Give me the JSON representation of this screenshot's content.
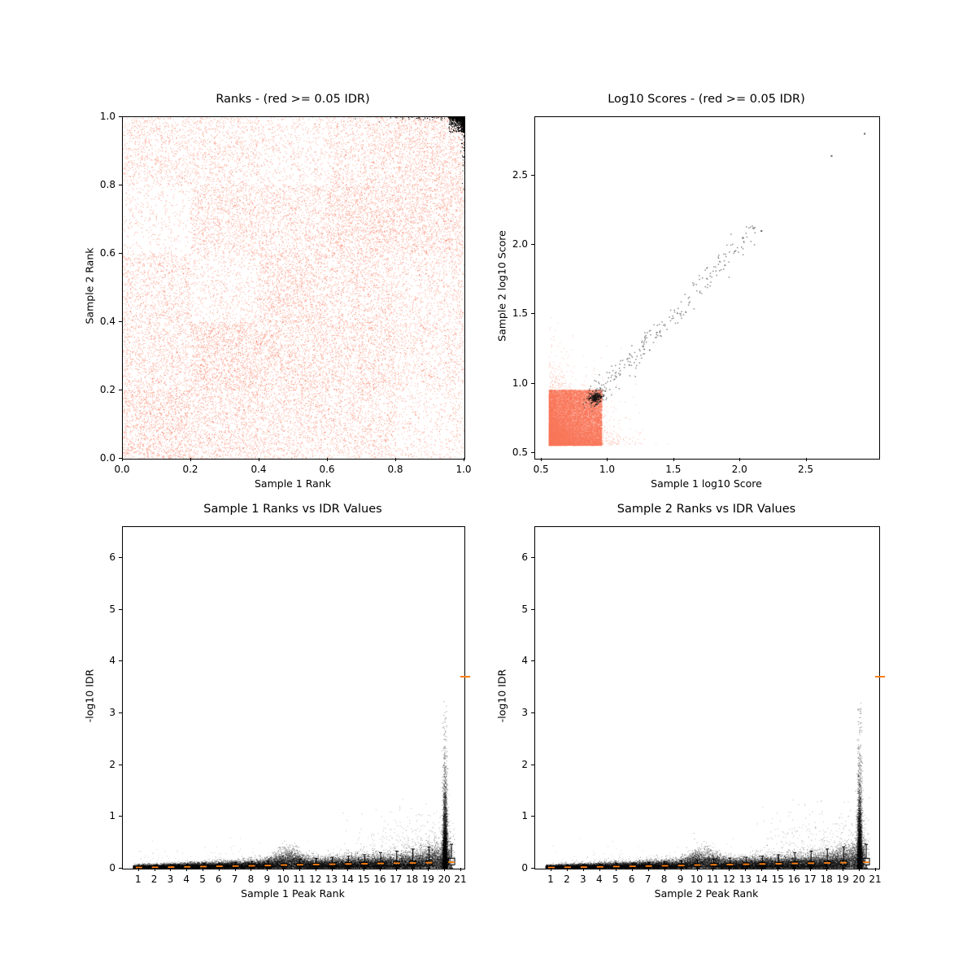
{
  "figure": {
    "background": "#ffffff"
  },
  "colors": {
    "salmon": "#f8765a",
    "black": "#000000",
    "gray": "#555555",
    "orange": "#ff7f0e"
  },
  "chart_data": [
    {
      "type": "scatter",
      "title": "Ranks - (red >= 0.05 IDR)",
      "xlabel": "Sample 1 Rank",
      "ylabel": "Sample 2 Rank",
      "xlim": [
        0,
        1
      ],
      "ylim": [
        0,
        1
      ],
      "xticks": [
        0.0,
        0.2,
        0.4,
        0.6,
        0.8,
        1.0
      ],
      "xtick_labels": [
        "0.0",
        "0.2",
        "0.4",
        "0.6",
        "0.8",
        "1.0"
      ],
      "yticks": [
        0.0,
        0.2,
        0.4,
        0.6,
        0.8,
        1.0
      ],
      "ytick_labels": [
        "0.0",
        "0.2",
        "0.4",
        "0.6",
        "0.8",
        "1.0"
      ],
      "grid_on": false,
      "seed": 11,
      "series": [
        {
          "name": "peaks with IDR >= 0.05",
          "kind": "grid_cloud",
          "color": "#f8765a",
          "alpha": 0.35,
          "size": 1.3,
          "n": 26000,
          "cell": 0.2,
          "grid": [
            [
              1.0,
              0.7,
              0.6,
              0.55,
              0.3
            ],
            [
              0.65,
              1.0,
              0.85,
              0.75,
              0.5
            ],
            [
              0.6,
              0.35,
              0.85,
              0.65,
              0.45
            ],
            [
              0.2,
              0.7,
              0.65,
              0.95,
              0.85
            ],
            [
              0.55,
              0.5,
              0.3,
              0.6,
              0.8
            ]
          ]
        },
        {
          "name": "peaks with IDR < 0.05",
          "kind": "corner_cloud",
          "color": "#000000",
          "alpha": 0.8,
          "size": 1.3,
          "n": 1100,
          "corner": [
            1.0,
            1.0
          ],
          "spread": 0.045,
          "pow": 3.5
        },
        {
          "name": "top-edge significant peaks",
          "kind": "cluster",
          "color": "#000000",
          "alpha": 0.7,
          "size": 1.2,
          "n": 60,
          "cx": 0.9,
          "cy": 0.997,
          "sx": 0.07,
          "sy": 0.003
        },
        {
          "name": "right-edge significant peaks",
          "kind": "cluster",
          "color": "#000000",
          "alpha": 0.7,
          "size": 1.2,
          "n": 50,
          "cx": 0.997,
          "cy": 0.93,
          "sx": 0.003,
          "sy": 0.05
        }
      ]
    },
    {
      "type": "scatter",
      "title": "Log10 Scores - (red >= 0.05 IDR)",
      "xlabel": "Sample 1 log10 Score",
      "ylabel": "Sample 2 log10 Score",
      "xlim": [
        0.45,
        3.05
      ],
      "ylim": [
        0.46,
        2.92
      ],
      "xticks": [
        0.5,
        1.0,
        1.5,
        2.0,
        2.5
      ],
      "xtick_labels": [
        "0.5",
        "1.0",
        "1.5",
        "2.0",
        "2.5"
      ],
      "yticks": [
        0.5,
        1.0,
        1.5,
        2.0,
        2.5
      ],
      "ytick_labels": [
        "0.5",
        "1.0",
        "1.5",
        "2.0",
        "2.5"
      ],
      "grid_on": false,
      "seed": 22,
      "series": [
        {
          "name": "low-score non-reproducible blob",
          "kind": "blob_core",
          "color": "#f8765a",
          "alpha": 0.35,
          "size": 1.3,
          "n": 17000,
          "x0": 0.555,
          "y0": 0.555,
          "span": 0.4,
          "pow": 1.15
        },
        {
          "name": "blob fringe",
          "kind": "blob_fringe",
          "color": "#f8765a",
          "alpha": 0.3,
          "size": 1.2,
          "n": 5200,
          "x0": 0.555,
          "y0": 0.555,
          "scale": 0.115,
          "clip": 0.95
        },
        {
          "name": "reproducible diagonal scores",
          "kind": "diag",
          "color": "#444444",
          "alpha": 0.5,
          "size": 1.6,
          "n": 290,
          "t0": 0.88,
          "span": 1.3,
          "pow": 2.0,
          "sigma": 0.035
        },
        {
          "name": "dense significant cluster",
          "kind": "cluster",
          "color": "#111111",
          "alpha": 0.7,
          "size": 1.5,
          "n": 140,
          "cx": 0.905,
          "cy": 0.9,
          "sx": 0.025,
          "sy": 0.02
        },
        {
          "name": "high-score outliers",
          "kind": "points",
          "color": "#666666",
          "alpha": 0.9,
          "size": 2.2,
          "pts": [
            [
              2.69,
              2.64
            ],
            [
              2.94,
              2.8
            ],
            [
              2.1,
              2.12
            ],
            [
              2.16,
              2.1
            ],
            [
              2.02,
              2.05
            ]
          ]
        }
      ]
    },
    {
      "type": "scatter",
      "title": "Sample 1 Ranks vs IDR Values",
      "xlabel": "Sample 1 Peak Rank",
      "ylabel": "-log10 IDR",
      "xlim": [
        0,
        21.2
      ],
      "ylim": [
        0,
        6.6
      ],
      "xticks": [
        1,
        2,
        3,
        4,
        5,
        6,
        7,
        8,
        9,
        10,
        11,
        12,
        13,
        14,
        15,
        16,
        17,
        18,
        19,
        20,
        21
      ],
      "xtick_labels": [
        "1",
        "2",
        "3",
        "4",
        "5",
        "6",
        "7",
        "8",
        "9",
        "10",
        "11",
        "12",
        "13",
        "14",
        "15",
        "16",
        "17",
        "18",
        "19",
        "20",
        "21"
      ],
      "yticks": [
        0,
        1,
        2,
        3,
        4,
        5,
        6
      ],
      "ytick_labels": [
        "0",
        "1",
        "2",
        "3",
        "4",
        "5",
        "6"
      ],
      "grid_on": false,
      "seed": 33,
      "edge_dash": {
        "y": 3.7,
        "color": "#ff7f0e"
      },
      "series": [
        {
          "name": "idr band",
          "kind": "band",
          "color": "#000000",
          "alpha": 0.25,
          "size": 1.2,
          "n": 26000,
          "x0": 0.65,
          "x1": 20.35,
          "base": 0.022,
          "slope": 0.0055,
          "bump_amp": 0.09,
          "bump_x": 10.3,
          "bump_sig": 0.65,
          "grow_amp": 0.14,
          "grow_x0": 17.0
        },
        {
          "name": "top-rank spike",
          "kind": "spike",
          "color": "#000000",
          "alpha": 0.28,
          "size": 1.2,
          "n": 3800,
          "x": 20.0,
          "xsig": 0.075,
          "yscale": 0.52,
          "clip": 3.25
        },
        {
          "name": "scatter above band high ranks",
          "kind": "sprinkle",
          "color": "#000000",
          "alpha": 0.15,
          "size": 1.3,
          "n": 900,
          "x0": 13.5,
          "x1": 20.6,
          "xpow": 0.55,
          "yscale": 0.3,
          "yoff": 0.05,
          "clip": 1.45
        },
        {
          "name": "scatter above band low ranks",
          "kind": "sprinkle",
          "color": "#000000",
          "alpha": 0.12,
          "size": 1.2,
          "n": 260,
          "x0": 1.0,
          "x1": 14.0,
          "xpow": 1.0,
          "yscale": 0.13,
          "yoff": 0.03,
          "clip": 0.65
        },
        {
          "name": "per-rank boxplots",
          "kind": "boxplot",
          "color": "#000000",
          "median_color": "#ff7f0e",
          "width": 0.4,
          "stats": [
            [
              1,
              0.003,
              0.012,
              0.022,
              0.032,
              0.05
            ],
            [
              2,
              0.003,
              0.014,
              0.026,
              0.04,
              0.07
            ],
            [
              3,
              0.004,
              0.016,
              0.03,
              0.046,
              0.08
            ],
            [
              4,
              0.004,
              0.02,
              0.035,
              0.052,
              0.09
            ],
            [
              5,
              0.005,
              0.022,
              0.04,
              0.057,
              0.1
            ],
            [
              6,
              0.005,
              0.025,
              0.045,
              0.063,
              0.11
            ],
            [
              7,
              0.005,
              0.028,
              0.05,
              0.07,
              0.12
            ],
            [
              8,
              0.006,
              0.031,
              0.055,
              0.077,
              0.135
            ],
            [
              9,
              0.006,
              0.034,
              0.06,
              0.084,
              0.15
            ],
            [
              10,
              0.007,
              0.04,
              0.07,
              0.095,
              0.17
            ],
            [
              11,
              0.007,
              0.042,
              0.075,
              0.1,
              0.185
            ],
            [
              12,
              0.008,
              0.045,
              0.08,
              0.105,
              0.2
            ],
            [
              13,
              0.008,
              0.048,
              0.085,
              0.11,
              0.22
            ],
            [
              14,
              0.009,
              0.05,
              0.09,
              0.115,
              0.24
            ],
            [
              15,
              0.009,
              0.053,
              0.095,
              0.122,
              0.27
            ],
            [
              16,
              0.01,
              0.057,
              0.1,
              0.13,
              0.31
            ],
            [
              17,
              0.01,
              0.06,
              0.105,
              0.137,
              0.34
            ],
            [
              18,
              0.011,
              0.064,
              0.11,
              0.145,
              0.38
            ],
            [
              19,
              0.011,
              0.068,
              0.115,
              0.155,
              0.42
            ],
            [
              20.4,
              0.012,
              0.075,
              0.125,
              0.2,
              0.47
            ]
          ]
        }
      ]
    },
    {
      "type": "scatter",
      "title": "Sample 2 Ranks vs IDR Values",
      "xlabel": "Sample 2 Peak Rank",
      "ylabel": "-log10 IDR",
      "xlim": [
        0,
        21.2
      ],
      "ylim": [
        0,
        6.6
      ],
      "xticks": [
        1,
        2,
        3,
        4,
        5,
        6,
        7,
        8,
        9,
        10,
        11,
        12,
        13,
        14,
        15,
        16,
        17,
        18,
        19,
        20,
        21
      ],
      "xtick_labels": [
        "1",
        "2",
        "3",
        "4",
        "5",
        "6",
        "7",
        "8",
        "9",
        "10",
        "11",
        "12",
        "13",
        "14",
        "15",
        "16",
        "17",
        "18",
        "19",
        "20",
        "21"
      ],
      "yticks": [
        0,
        1,
        2,
        3,
        4,
        5,
        6
      ],
      "ytick_labels": [
        "0",
        "1",
        "2",
        "3",
        "4",
        "5",
        "6"
      ],
      "grid_on": false,
      "seed": 44,
      "edge_dash": {
        "y": 3.7,
        "color": "#ff7f0e"
      },
      "series": [
        {
          "name": "idr band",
          "kind": "band",
          "color": "#000000",
          "alpha": 0.25,
          "size": 1.2,
          "n": 26000,
          "x0": 0.65,
          "x1": 20.35,
          "base": 0.022,
          "slope": 0.0055,
          "bump_amp": 0.09,
          "bump_x": 10.3,
          "bump_sig": 0.65,
          "grow_amp": 0.14,
          "grow_x0": 17.0
        },
        {
          "name": "top-rank spike",
          "kind": "spike",
          "color": "#000000",
          "alpha": 0.28,
          "size": 1.2,
          "n": 3800,
          "x": 20.0,
          "xsig": 0.075,
          "yscale": 0.52,
          "clip": 3.25
        },
        {
          "name": "scatter above band high ranks",
          "kind": "sprinkle",
          "color": "#000000",
          "alpha": 0.15,
          "size": 1.3,
          "n": 900,
          "x0": 13.5,
          "x1": 20.6,
          "xpow": 0.55,
          "yscale": 0.3,
          "yoff": 0.05,
          "clip": 1.45
        },
        {
          "name": "scatter above band low ranks",
          "kind": "sprinkle",
          "color": "#000000",
          "alpha": 0.12,
          "size": 1.2,
          "n": 260,
          "x0": 1.0,
          "x1": 14.0,
          "xpow": 1.0,
          "yscale": 0.13,
          "yoff": 0.03,
          "clip": 0.65
        },
        {
          "name": "per-rank boxplots",
          "kind": "boxplot",
          "color": "#000000",
          "median_color": "#ff7f0e",
          "width": 0.4,
          "stats": [
            [
              1,
              0.003,
              0.012,
              0.022,
              0.032,
              0.05
            ],
            [
              2,
              0.003,
              0.014,
              0.026,
              0.04,
              0.07
            ],
            [
              3,
              0.004,
              0.016,
              0.03,
              0.046,
              0.08
            ],
            [
              4,
              0.004,
              0.02,
              0.035,
              0.052,
              0.09
            ],
            [
              5,
              0.005,
              0.022,
              0.04,
              0.057,
              0.1
            ],
            [
              6,
              0.005,
              0.025,
              0.045,
              0.063,
              0.11
            ],
            [
              7,
              0.005,
              0.028,
              0.05,
              0.07,
              0.12
            ],
            [
              8,
              0.006,
              0.031,
              0.055,
              0.077,
              0.135
            ],
            [
              9,
              0.006,
              0.034,
              0.06,
              0.084,
              0.15
            ],
            [
              10,
              0.007,
              0.04,
              0.07,
              0.095,
              0.17
            ],
            [
              11,
              0.007,
              0.042,
              0.075,
              0.1,
              0.185
            ],
            [
              12,
              0.008,
              0.045,
              0.08,
              0.105,
              0.2
            ],
            [
              13,
              0.008,
              0.048,
              0.085,
              0.11,
              0.22
            ],
            [
              14,
              0.009,
              0.05,
              0.09,
              0.115,
              0.24
            ],
            [
              15,
              0.009,
              0.053,
              0.095,
              0.122,
              0.27
            ],
            [
              16,
              0.01,
              0.057,
              0.1,
              0.13,
              0.31
            ],
            [
              17,
              0.01,
              0.06,
              0.105,
              0.137,
              0.34
            ],
            [
              18,
              0.011,
              0.064,
              0.11,
              0.145,
              0.38
            ],
            [
              19,
              0.011,
              0.068,
              0.115,
              0.155,
              0.42
            ],
            [
              20.4,
              0.012,
              0.075,
              0.125,
              0.2,
              0.47
            ]
          ]
        }
      ]
    }
  ]
}
